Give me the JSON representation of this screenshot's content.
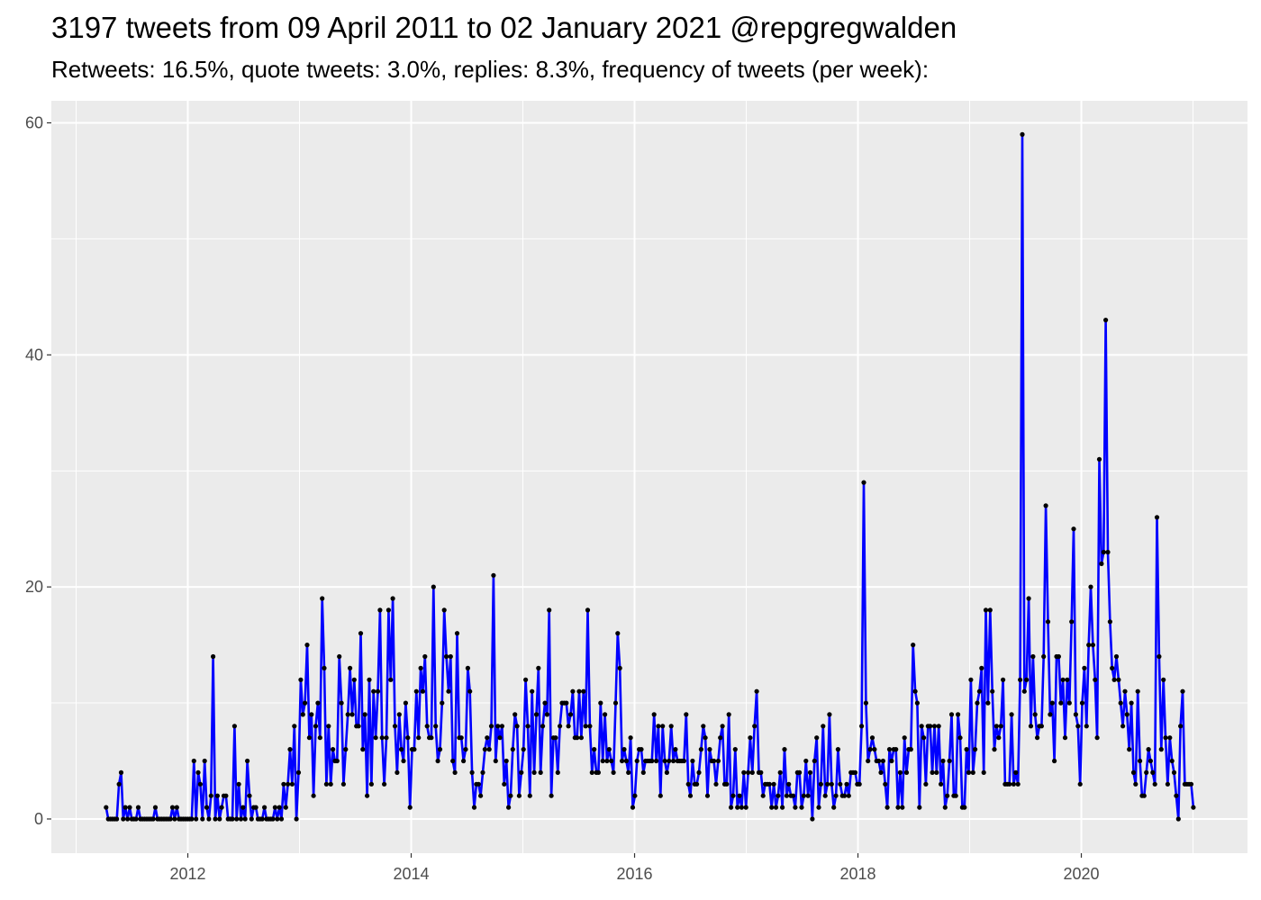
{
  "chart_data": {
    "type": "line",
    "title": "3197 tweets from 09 April 2011 to 02 January 2021 @repgregwalden",
    "subtitle": "Retweets: 16.5%, quote tweets: 3.0%, replies: 8.3%, frequency of tweets (per week):",
    "xlabel": "",
    "ylabel": "",
    "x_start": "2011-04-09",
    "x_end": "2021-01-02",
    "x_ticks": [
      "2012",
      "2014",
      "2016",
      "2018",
      "2020"
    ],
    "y_ticks": [
      0,
      20,
      40,
      60
    ],
    "ylim": [
      -2.95,
      61.9
    ],
    "xlim": [
      "2010-10-12",
      "2021-06-28"
    ],
    "grid": true,
    "background": "#ebebeb",
    "line_color": "#0000ff",
    "point_color": "#000000",
    "values": [
      1,
      0,
      0,
      0,
      0,
      0,
      3,
      4,
      0,
      1,
      0,
      1,
      0,
      0,
      0,
      1,
      0,
      0,
      0,
      0,
      0,
      0,
      0,
      1,
      0,
      0,
      0,
      0,
      0,
      0,
      0,
      1,
      0,
      1,
      0,
      0,
      0,
      0,
      0,
      0,
      0,
      5,
      0,
      4,
      3,
      0,
      5,
      1,
      0,
      2,
      14,
      0,
      2,
      0,
      1,
      2,
      2,
      0,
      0,
      0,
      8,
      0,
      3,
      0,
      1,
      0,
      5,
      2,
      0,
      1,
      1,
      0,
      0,
      0,
      1,
      0,
      0,
      0,
      0,
      1,
      0,
      1,
      0,
      3,
      1,
      3,
      6,
      3,
      8,
      0,
      4,
      12,
      9,
      10,
      15,
      7,
      9,
      2,
      8,
      10,
      7,
      19,
      13,
      3,
      8,
      3,
      6,
      5,
      5,
      14,
      10,
      3,
      6,
      9,
      13,
      9,
      12,
      8,
      8,
      16,
      6,
      9,
      2,
      12,
      3,
      11,
      7,
      11,
      18,
      7,
      3,
      7,
      18,
      12,
      19,
      8,
      4,
      9,
      6,
      5,
      10,
      7,
      1,
      6,
      6,
      11,
      7,
      13,
      11,
      14,
      8,
      7,
      7,
      20,
      8,
      5,
      6,
      10,
      18,
      14,
      11,
      14,
      5,
      4,
      16,
      7,
      7,
      5,
      6,
      13,
      11,
      4,
      1,
      3,
      3,
      2,
      4,
      6,
      7,
      6,
      8,
      21,
      5,
      8,
      7,
      8,
      3,
      5,
      1,
      2,
      6,
      9,
      8,
      2,
      4,
      6,
      12,
      8,
      2,
      11,
      4,
      9,
      13,
      4,
      8,
      10,
      9,
      18,
      2,
      7,
      7,
      4,
      8,
      10,
      10,
      10,
      8,
      9,
      11,
      7,
      7,
      11,
      7,
      11,
      8,
      18,
      8,
      4,
      6,
      4,
      4,
      10,
      5,
      9,
      5,
      6,
      5,
      4,
      10,
      16,
      13,
      5,
      6,
      5,
      4,
      7,
      1,
      2,
      5,
      6,
      6,
      4,
      5,
      5,
      5,
      5,
      9,
      5,
      8,
      2,
      8,
      5,
      4,
      5,
      8,
      5,
      6,
      5,
      5,
      5,
      5,
      9,
      3,
      2,
      5,
      3,
      3,
      4,
      6,
      8,
      7,
      2,
      6,
      5,
      5,
      3,
      5,
      7,
      8,
      3,
      3,
      9,
      1,
      2,
      6,
      1,
      2,
      1,
      4,
      1,
      4,
      7,
      4,
      8,
      11,
      4,
      4,
      2,
      3,
      3,
      3,
      1,
      3,
      1,
      2,
      4,
      1,
      6,
      2,
      3,
      2,
      2,
      1,
      4,
      4,
      1,
      2,
      5,
      2,
      4,
      0,
      5,
      7,
      1,
      3,
      8,
      2,
      3,
      9,
      3,
      1,
      2,
      6,
      3,
      2,
      2,
      3,
      2,
      4,
      4,
      4,
      3,
      3,
      8,
      29,
      10,
      5,
      6,
      7,
      6,
      5,
      5,
      4,
      5,
      3,
      1,
      6,
      5,
      6,
      6,
      1,
      4,
      1,
      7,
      4,
      6,
      6,
      15,
      11,
      10,
      1,
      8,
      7,
      3,
      8,
      8,
      4,
      8,
      4,
      8,
      3,
      5,
      1,
      2,
      5,
      9,
      2,
      2,
      9,
      7,
      1,
      1,
      6,
      4,
      12,
      4,
      6,
      10,
      11,
      13,
      4,
      18,
      10,
      18,
      11,
      6,
      8,
      7,
      8,
      12,
      3,
      3,
      3,
      9,
      3,
      4,
      3,
      12,
      59,
      11,
      12,
      19,
      8,
      14,
      9,
      7,
      8,
      8,
      14,
      27,
      17,
      9,
      10,
      5,
      14,
      14,
      10,
      12,
      7,
      12,
      10,
      17,
      25,
      9,
      8,
      3,
      10,
      13,
      8,
      15,
      20,
      15,
      12,
      7,
      31,
      22,
      23,
      43,
      23,
      17,
      13,
      12,
      14,
      12,
      10,
      8,
      11,
      9,
      6,
      10,
      4,
      3,
      11,
      5,
      2,
      2,
      4,
      6,
      5,
      4,
      3,
      26,
      14,
      6,
      12,
      7,
      3,
      7,
      5,
      4,
      2,
      0,
      8,
      11,
      3,
      3,
      3,
      3,
      1
    ]
  }
}
